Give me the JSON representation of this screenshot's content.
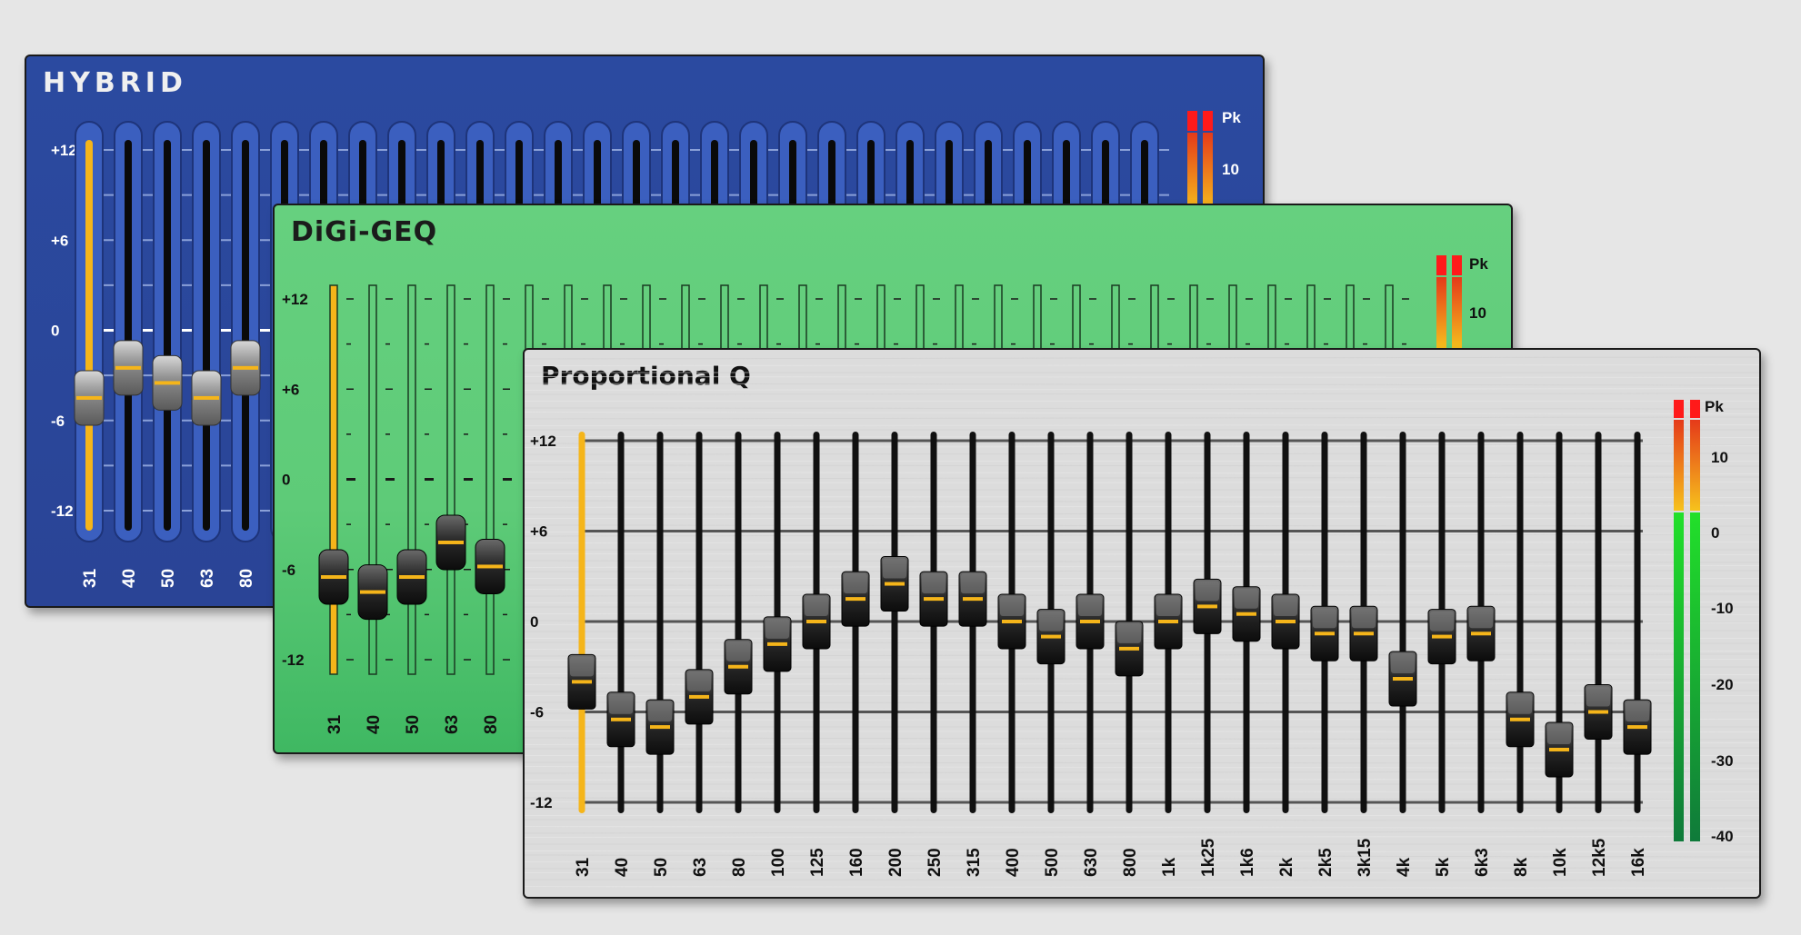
{
  "bands": [
    "31",
    "40",
    "50",
    "63",
    "80",
    "100",
    "125",
    "160",
    "200",
    "250",
    "315",
    "400",
    "500",
    "630",
    "800",
    "1k",
    "1k25",
    "1k6",
    "2k",
    "2k5",
    "3k15",
    "4k",
    "5k",
    "6k3",
    "8k",
    "10k",
    "12k5",
    "16k"
  ],
  "scale_labels": [
    "+12",
    "+6",
    "0",
    "-6",
    "-12"
  ],
  "colors": {
    "accent": "#f5b51a",
    "hybrid_bg": "#2b4aa0",
    "digi_bg": "#62cd7c",
    "prop_bg": "#dcdcdc"
  },
  "panels": {
    "hybrid": {
      "title": "HYBRID",
      "visible_bands": 5,
      "gains_db": [
        -4.5,
        -2.5,
        -3.5,
        -4.5,
        -2.5
      ],
      "meter": {
        "peak_label": "Pk",
        "scale_labels": [
          "10"
        ]
      }
    },
    "digi": {
      "title": "DiGi-GEQ",
      "visible_bands": 5,
      "gains_db": [
        -6.5,
        -7.5,
        -6.5,
        -4.2,
        -5.8
      ],
      "meter": {
        "peak_label": "Pk",
        "scale_labels": [
          "10"
        ]
      }
    },
    "prop": {
      "title": "Proportional Q",
      "gains_db": [
        -4,
        -6.5,
        -7,
        -5,
        -3,
        -1.5,
        0,
        1.5,
        2.5,
        1.5,
        1.5,
        0,
        -1,
        0,
        -1.8,
        0,
        1,
        0.5,
        0,
        -0.8,
        -0.8,
        -3.8,
        -1,
        -0.8,
        -6.5,
        -8.5,
        -6,
        -7
      ],
      "meter": {
        "peak_label": "Pk",
        "scale_labels": [
          "10",
          "0",
          "-10",
          "-20",
          "-30",
          "-40"
        ]
      }
    }
  }
}
